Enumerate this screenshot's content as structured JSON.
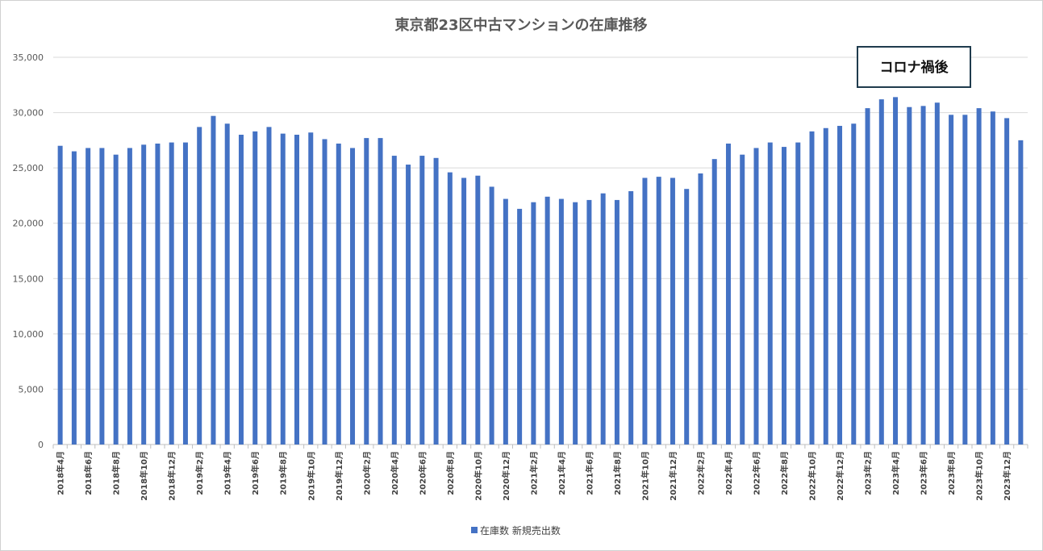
{
  "chart_data": {
    "type": "bar",
    "title": "東京都23区中古マンションの在庫推移",
    "xlabel": "",
    "ylabel": "",
    "ylim": [
      0,
      35000
    ],
    "yticks": [
      0,
      5000,
      10000,
      15000,
      20000,
      25000,
      30000,
      35000
    ],
    "ytick_labels": [
      "0",
      "5,000",
      "10,000",
      "15,000",
      "20,000",
      "25,000",
      "30,000",
      "35,000"
    ],
    "grid": true,
    "legend_position": "bottom",
    "categories": [
      "2018年4月",
      "2018年5月",
      "2018年6月",
      "2018年7月",
      "2018年8月",
      "2018年9月",
      "2018年10月",
      "2018年11月",
      "2018年12月",
      "2019年1月",
      "2019年2月",
      "2019年3月",
      "2019年4月",
      "2019年5月",
      "2019年6月",
      "2019年7月",
      "2019年8月",
      "2019年9月",
      "2019年10月",
      "2019年11月",
      "2019年12月",
      "2020年1月",
      "2020年2月",
      "2020年3月",
      "2020年4月",
      "2020年5月",
      "2020年6月",
      "2020年7月",
      "2020年8月",
      "2020年9月",
      "2020年10月",
      "2020年11月",
      "2020年12月",
      "2021年1月",
      "2021年2月",
      "2021年3月",
      "2021年4月",
      "2021年5月",
      "2021年6月",
      "2021年7月",
      "2021年8月",
      "2021年9月",
      "2021年10月",
      "2021年11月",
      "2021年12月",
      "2022年1月",
      "2022年2月",
      "2022年3月",
      "2022年4月",
      "2022年5月",
      "2022年6月",
      "2022年7月",
      "2022年8月",
      "2022年9月",
      "2022年10月",
      "2022年11月",
      "2022年12月",
      "2023年1月",
      "2023年2月",
      "2023年3月",
      "2023年4月",
      "2023年5月",
      "2023年6月",
      "2023年7月",
      "2023年8月",
      "2023年9月",
      "2023年10月",
      "2023年11月",
      "2023年12月",
      "2024年1月"
    ],
    "x_tick_labels": [
      "2018年4月",
      "2018年6月",
      "2018年8月",
      "2018年10月",
      "2018年12月",
      "2019年2月",
      "2019年4月",
      "2019年6月",
      "2019年8月",
      "2019年10月",
      "2019年12月",
      "2020年2月",
      "2020年4月",
      "2020年6月",
      "2020年8月",
      "2020年10月",
      "2020年12月",
      "2021年2月",
      "2021年4月",
      "2021年6月",
      "2021年8月",
      "2021年10月",
      "2021年12月",
      "2022年2月",
      "2022年4月",
      "2022年6月",
      "2022年8月",
      "2022年10月",
      "2022年12月",
      "2023年2月",
      "2023年4月",
      "2023年6月",
      "2023年8月",
      "2023年10月",
      "2023年12月"
    ],
    "series": [
      {
        "name": "在庫数 新規売出数",
        "color": "#4472c4",
        "values": [
          27000,
          26500,
          26800,
          26800,
          26200,
          26800,
          27100,
          27200,
          27300,
          27300,
          28700,
          29700,
          29000,
          28000,
          28300,
          28700,
          28100,
          28000,
          28200,
          27600,
          27200,
          26800,
          27700,
          27700,
          26100,
          25300,
          26100,
          25900,
          24600,
          24100,
          24300,
          23300,
          22200,
          21300,
          21900,
          22400,
          22200,
          21900,
          22100,
          22700,
          22100,
          22900,
          24100,
          24200,
          24100,
          23100,
          24500,
          25800,
          27200,
          26200,
          26800,
          27300,
          26900,
          27300,
          28300,
          28600,
          28800,
          29000,
          30400,
          31200,
          31400,
          30500,
          30600,
          30900,
          29800,
          29800,
          30400,
          30100,
          29500,
          27500
        ]
      }
    ],
    "annotation": {
      "text": "コロナ禍後",
      "border_color": "#1f3b4d"
    }
  }
}
